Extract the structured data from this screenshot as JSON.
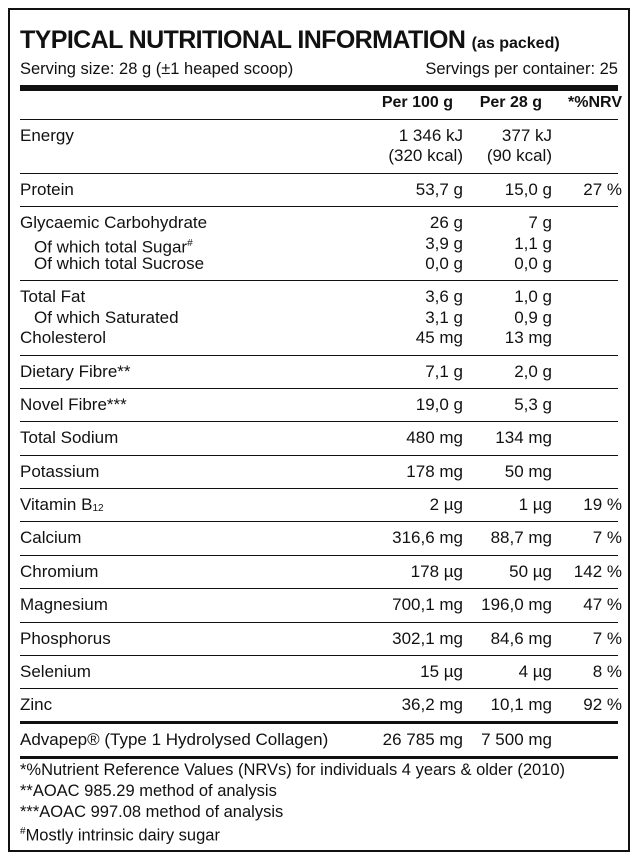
{
  "header": {
    "title": "TYPICAL NUTRITIONAL INFORMATION",
    "title_note": "(as packed)",
    "serving_size": "Serving size: 28 g (±1 heaped scoop)",
    "servings_per_container": "Servings per container: 25"
  },
  "table": {
    "columns": {
      "per_100g": "Per 100 g",
      "per_28g": "Per 28 g",
      "nrv": "*%NRV"
    },
    "groups": [
      {
        "rows": [
          {
            "label": "Energy",
            "per_100g": [
              "1 346 kJ",
              "(320 kcal)"
            ],
            "per_28g": [
              "377 kJ",
              "(90 kcal)"
            ]
          }
        ]
      },
      {
        "rows": [
          {
            "label": "Protein",
            "per_100g": "53,7 g",
            "per_28g": "15,0 g",
            "nrv": "27 %"
          }
        ]
      },
      {
        "rows": [
          {
            "label": "Glycaemic Carbohydrate",
            "per_100g": "26 g",
            "per_28g": "7 g"
          },
          {
            "label": "Of which total Sugar",
            "label_sup": "#",
            "indent": true,
            "per_100g": "3,9 g",
            "per_28g": "1,1 g"
          },
          {
            "label": "Of which total Sucrose",
            "indent": true,
            "per_100g": "0,0 g",
            "per_28g": "0,0 g"
          }
        ]
      },
      {
        "rows": [
          {
            "label": "Total Fat",
            "per_100g": "3,6 g",
            "per_28g": "1,0 g"
          },
          {
            "label": "Of which Saturated",
            "indent": true,
            "per_100g": "3,1 g",
            "per_28g": "0,9 g"
          },
          {
            "label": "Cholesterol",
            "per_100g": "45 mg",
            "per_28g": "13 mg"
          }
        ]
      },
      {
        "rows": [
          {
            "label": "Dietary Fibre**",
            "per_100g": "7,1 g",
            "per_28g": "2,0 g"
          }
        ]
      },
      {
        "rows": [
          {
            "label": "Novel Fibre***",
            "per_100g": "19,0 g",
            "per_28g": "5,3 g"
          }
        ]
      },
      {
        "rows": [
          {
            "label": "Total Sodium",
            "per_100g": "480 mg",
            "per_28g": "134 mg"
          }
        ]
      },
      {
        "rows": [
          {
            "label": "Potassium",
            "per_100g": "178 mg",
            "per_28g": "50 mg"
          }
        ]
      },
      {
        "rows": [
          {
            "label": "Vitamin B",
            "label_sub": "12",
            "per_100g": "2 µg",
            "per_28g": "1 µg",
            "nrv": "19 %"
          }
        ]
      },
      {
        "rows": [
          {
            "label": "Calcium",
            "per_100g": "316,6 mg",
            "per_28g": "88,7 mg",
            "nrv": "7 %"
          }
        ]
      },
      {
        "rows": [
          {
            "label": "Chromium",
            "per_100g": "178 µg",
            "per_28g": "50 µg",
            "nrv": "142 %"
          }
        ]
      },
      {
        "rows": [
          {
            "label": "Magnesium",
            "per_100g": "700,1 mg",
            "per_28g": "196,0 mg",
            "nrv": "47 %"
          }
        ]
      },
      {
        "rows": [
          {
            "label": "Phosphorus",
            "per_100g": "302,1 mg",
            "per_28g": "84,6 mg",
            "nrv": "7 %"
          }
        ]
      },
      {
        "rows": [
          {
            "label": "Selenium",
            "per_100g": "15 µg",
            "per_28g": "4 µg",
            "nrv": "8 %"
          }
        ]
      },
      {
        "rows": [
          {
            "label": "Zinc",
            "per_100g": "36,2 mg",
            "per_28g": "10,1 mg",
            "nrv": "92 %"
          }
        ]
      }
    ],
    "total": {
      "label": "Advapep® (Type 1 Hydrolysed Collagen)",
      "per_100g": "26 785 mg",
      "per_28g": "7 500 mg"
    }
  },
  "footnotes": [
    {
      "text": "*%Nutrient Reference Values (NRVs) for individuals 4 years & older (2010)"
    },
    {
      "text": "**AOAC 985.29 method of analysis"
    },
    {
      "text": "***AOAC 997.08 method of analysis"
    },
    {
      "sup": "#",
      "text": "Mostly intrinsic dairy sugar"
    }
  ]
}
